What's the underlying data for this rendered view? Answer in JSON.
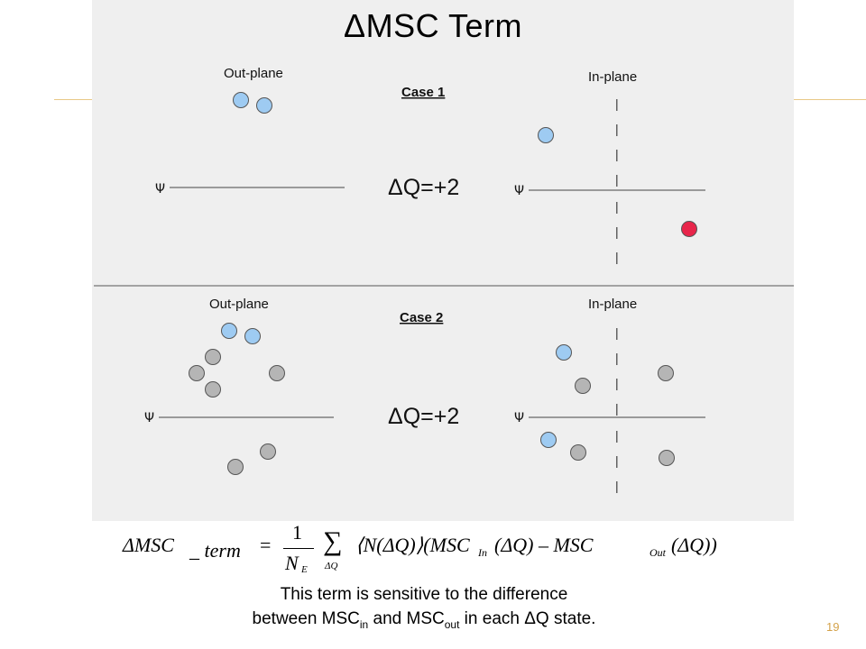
{
  "title": "ΔMSC Term",
  "case1": {
    "label": "Case 1",
    "out_plane_label": "Out-plane",
    "in_plane_label": "In-plane",
    "psi_label": "Ψ",
    "dq_label": "ΔQ=+2"
  },
  "case2": {
    "label": "Case 2",
    "out_plane_label": "Out-plane",
    "in_plane_label": "In-plane",
    "psi_label": "Ψ",
    "dq_label": "ΔQ=+2"
  },
  "formula": {
    "lhs": "ΔMSC",
    "lhs_term": "_ term",
    "equals": "=",
    "numerator": "1",
    "denominator": "N",
    "denominator_sub": "E",
    "sum_symbol": "∑",
    "sum_sub": "ΔQ",
    "body_part1": "⟨N(ΔQ)⟩(MSC",
    "sub_in": "In",
    "body_part2": "(ΔQ) – MSC",
    "sub_out": "Out",
    "body_part3": "(ΔQ))"
  },
  "caption": {
    "line1": "This term is sensitive to the difference",
    "line2_a": "between MSC",
    "line2_sub_in": "in",
    "line2_b": " and MSC",
    "line2_sub_out": "out",
    "line2_c": " in each ΔQ state."
  },
  "page_number": "19",
  "colors": {
    "blue_dot": "#9ecbf2",
    "red_dot": "#e8254a",
    "gray_dot": "#b5b5b5",
    "accent_line": "#e8c887",
    "page_number": "#d4a24a"
  }
}
